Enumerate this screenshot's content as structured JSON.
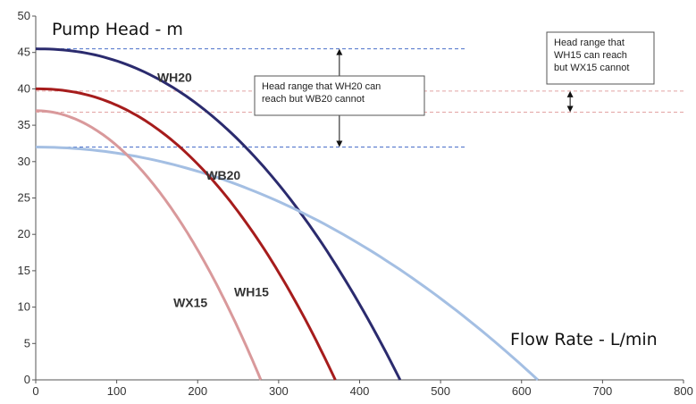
{
  "chart_data": {
    "type": "line",
    "ylabel": "Pump Head - m",
    "xlabel": "Flow Rate - L/min",
    "xlim": [
      0,
      800
    ],
    "ylim": [
      0,
      50
    ],
    "xticks": [
      0,
      100,
      200,
      300,
      400,
      500,
      600,
      700,
      800
    ],
    "yticks": [
      0,
      5,
      10,
      15,
      20,
      25,
      30,
      35,
      40,
      45,
      50
    ],
    "grid": false,
    "series": [
      {
        "name": "WH20",
        "color": "#2b2b6e",
        "shutoff_head": 45.5,
        "max_flow": 450,
        "exponent": 2.2,
        "label_at": [
          150,
          41
        ]
      },
      {
        "name": "WB20",
        "color": "#a4bfe3",
        "shutoff_head": 32,
        "max_flow": 620,
        "exponent": 2.0,
        "label_at": [
          210,
          27.5
        ]
      },
      {
        "name": "WH15",
        "color": "#a61c1c",
        "shutoff_head": 40,
        "max_flow": 370,
        "exponent": 2.2,
        "label_at": [
          245,
          11.5
        ]
      },
      {
        "name": "WX15",
        "color": "#d9999b",
        "shutoff_head": 37,
        "max_flow": 278,
        "exponent": 2.0,
        "label_at": [
          170,
          10
        ]
      }
    ],
    "reference_lines": [
      {
        "y": 45.5,
        "x_end": 530,
        "color": "#4a6fc9"
      },
      {
        "y": 32,
        "x_end": 530,
        "color": "#4a6fc9"
      },
      {
        "y": 39.7,
        "x_end": 800,
        "color": "#e2a3a3"
      },
      {
        "y": 36.8,
        "x_end": 800,
        "color": "#e2a3a3"
      }
    ],
    "annotations": [
      {
        "text": [
          "Head range that WH20 can",
          "reach but WB20 cannot"
        ],
        "arrow_x": 375,
        "arrow_from": 45.5,
        "arrow_to": 32
      },
      {
        "text": [
          "Head range that",
          "WH15  can reach",
          "but WX15 cannot"
        ],
        "arrow_x": 660,
        "arrow_from": 39.7,
        "arrow_to": 36.8
      }
    ]
  }
}
